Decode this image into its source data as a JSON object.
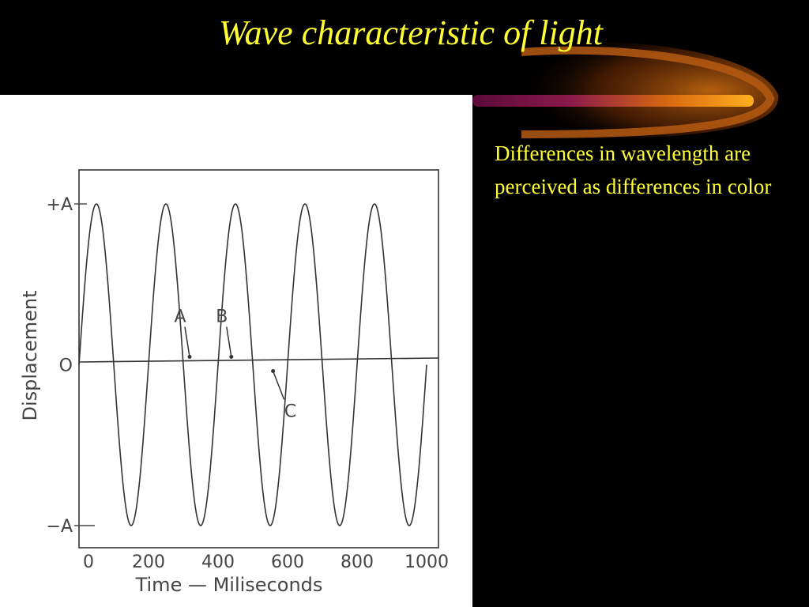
{
  "slide": {
    "title": "Wave characteristic of light",
    "body_text": "Differences in wavelength are perceived as differences in color"
  },
  "colors": {
    "background": "#000000",
    "text": "#ffff33",
    "figure_background": "#ffffff"
  },
  "chart_data": {
    "type": "line",
    "xlabel": "Time — Miliseconds",
    "ylabel": "Displacement",
    "x_ticks": [
      "0",
      "200",
      "400",
      "600",
      "800",
      "1000"
    ],
    "y_ticks": [
      "+A",
      "O",
      "−A"
    ],
    "xlim": [
      0,
      1000
    ],
    "ylim": [
      -1,
      1
    ],
    "series": [
      {
        "function": "sine",
        "amplitude": 1,
        "period_ms": 200,
        "x_start": 0,
        "x_end": 1000
      }
    ],
    "annotations": [
      {
        "label": "A",
        "x": 350,
        "y": 0
      },
      {
        "label": "B",
        "x": 470,
        "y": 0
      },
      {
        "label": "C",
        "x": 590,
        "y": 0
      }
    ],
    "grid": false,
    "legend": "none"
  }
}
